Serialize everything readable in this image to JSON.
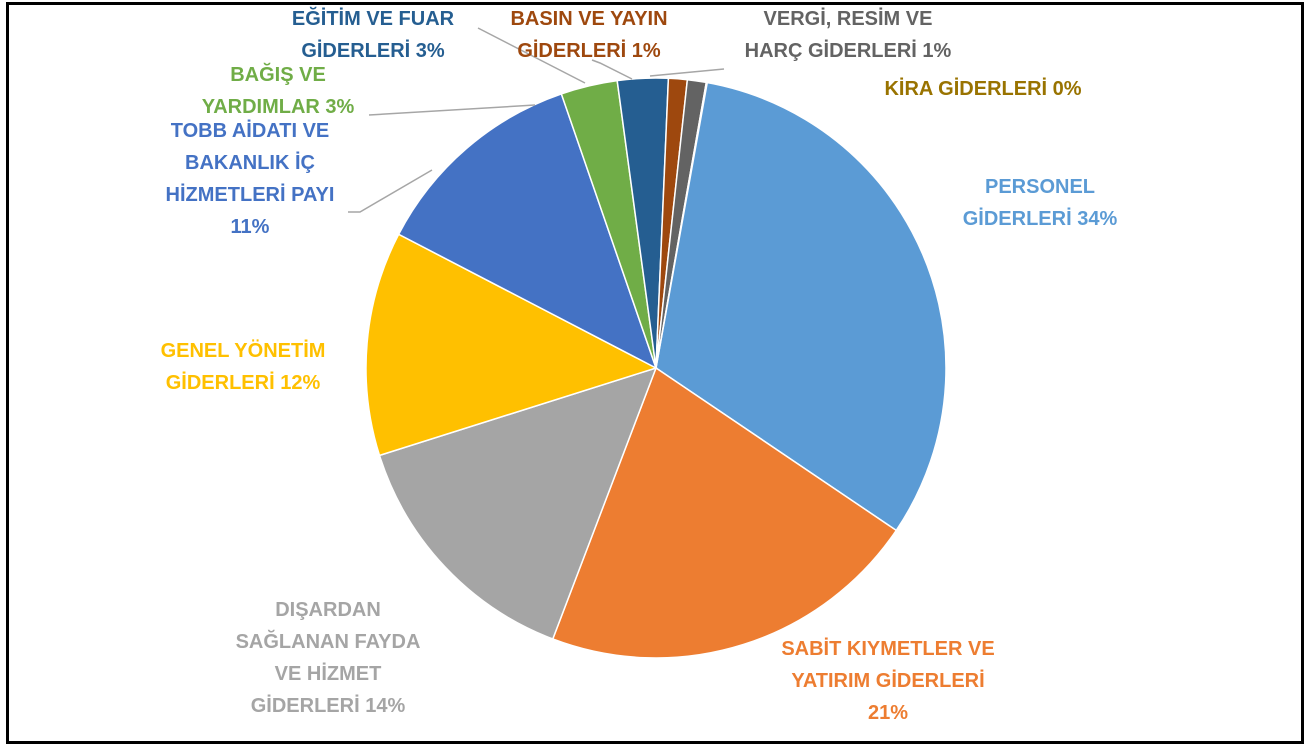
{
  "chart_data": {
    "type": "pie",
    "title": "",
    "slices": [
      {
        "label": "PERSONEL GİDERLERİ",
        "value": 34,
        "display": "34%",
        "color": "#5B9BD5",
        "label_lines": [
          "PERSONEL",
          "GİDERLERİ 34%"
        ]
      },
      {
        "label": "SABİT KIYMETLER VE YATIRIM GİDERLERİ",
        "value": 21,
        "display": "21%",
        "color": "#ED7D31",
        "label_lines": [
          "SABİT KIYMETLER VE",
          "YATIRIM GİDERLERİ",
          "21%"
        ]
      },
      {
        "label": "DIŞARDAN SAĞLANAN FAYDA VE HİZMET GİDERLERİ",
        "value": 14,
        "display": "14%",
        "color": "#A5A5A5",
        "label_lines": [
          "DIŞARDAN",
          "SAĞLANAN FAYDA",
          "VE HİZMET",
          "GİDERLERİ 14%"
        ]
      },
      {
        "label": "GENEL YÖNETİM GİDERLERİ",
        "value": 12,
        "display": "12%",
        "color": "#FFC000",
        "label_lines": [
          "GENEL YÖNETİM",
          "GİDERLERİ 12%"
        ]
      },
      {
        "label": "TOBB AİDATI VE BAKANLIK İÇ HİZMETLERİ PAYI",
        "value": 11,
        "display": "11%",
        "color": "#4472C4",
        "label_lines": [
          "TOBB AİDATI VE",
          "BAKANLIK İÇ",
          "HİZMETLERİ PAYI",
          "11%"
        ]
      },
      {
        "label": "BAĞIŞ VE YARDIMLAR",
        "value": 3,
        "display": "3%",
        "color": "#70AD47",
        "label_lines": [
          "BAĞIŞ VE",
          "YARDIMLAR 3%"
        ]
      },
      {
        "label": "EĞİTİM VE FUAR GİDERLERİ",
        "value": 3,
        "display": "3%",
        "color": "#255E91",
        "label_lines": [
          "EĞİTİM VE FUAR",
          "GİDERLERİ 3%"
        ]
      },
      {
        "label": "BASIN VE YAYIN GİDERLERİ",
        "value": 1,
        "display": "1%",
        "color": "#9E480E",
        "label_lines": [
          "BASIN VE YAYIN",
          "GİDERLERİ 1%"
        ]
      },
      {
        "label": "VERGİ, RESİM VE HARÇ GİDERLERİ",
        "value": 1,
        "display": "1%",
        "color": "#636363",
        "label_lines": [
          "VERGİ, RESİM VE",
          "HARÇ GİDERLERİ 1%"
        ]
      },
      {
        "label": "KİRA GİDERLERİ",
        "value": 0,
        "display": "0%",
        "color": "#997300",
        "label_lines": [
          "KİRA GİDERLERİ 0%"
        ]
      }
    ],
    "legend": "none",
    "data_labels": "outside"
  }
}
